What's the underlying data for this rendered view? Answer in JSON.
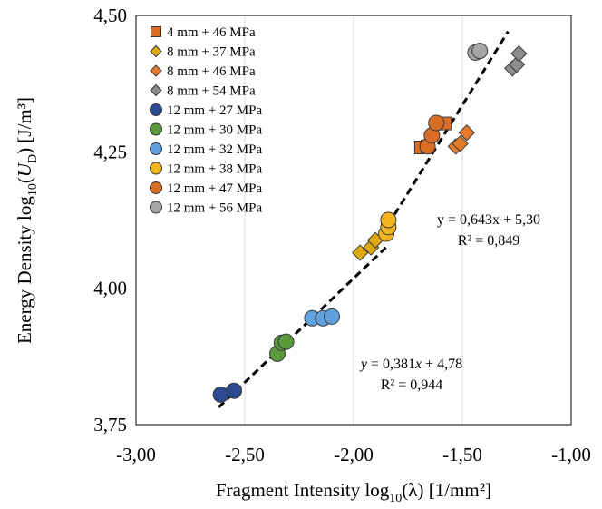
{
  "chart_data": {
    "type": "scatter",
    "xlabel": {
      "prefix": "Fragment Intensity log",
      "sub": "10",
      "suffix": "(λ) [1/mm²]"
    },
    "ylabel": {
      "prefix": "Energy Density log",
      "sub": "10",
      "mid": "(",
      "var": "U",
      "var_sub": "D",
      "suffix": ") [J/m³]"
    },
    "xlim": [
      -3.0,
      -1.0
    ],
    "ylim": [
      3.75,
      4.5
    ],
    "x_ticks": [
      -3.0,
      -2.5,
      -2.0,
      -1.5,
      -1.0
    ],
    "x_tick_labels": [
      "-3,00",
      "-2,50",
      "-2,00",
      "-1,50",
      "-1,00"
    ],
    "y_ticks": [
      3.75,
      4.0,
      4.25,
      4.5
    ],
    "y_tick_labels": [
      "3,75",
      "4,00",
      "4,25",
      "4,50"
    ],
    "grid": {
      "x": true,
      "y": false
    },
    "legend_position": "top-left",
    "series": [
      {
        "name": "4 mm + 46 MPa",
        "marker": "square",
        "color": "#D86E25",
        "points": [
          [
            -1.69,
            4.258
          ],
          [
            -1.66,
            4.26
          ],
          [
            -1.58,
            4.302
          ]
        ]
      },
      {
        "name": "8 mm + 37 MPa",
        "marker": "diamond",
        "color": "#DEA813",
        "points": [
          [
            -1.97,
            4.065
          ],
          [
            -1.92,
            4.075
          ],
          [
            -1.9,
            4.088
          ]
        ]
      },
      {
        "name": "8 mm + 46 MPa",
        "marker": "diamond",
        "color": "#E37B2A",
        "points": [
          [
            -1.53,
            4.26
          ],
          [
            -1.51,
            4.265
          ],
          [
            -1.48,
            4.285
          ]
        ]
      },
      {
        "name": "8 mm + 54 MPa",
        "marker": "diamond",
        "color": "#8C8C8C",
        "points": [
          [
            -1.27,
            4.403
          ],
          [
            -1.25,
            4.41
          ],
          [
            -1.24,
            4.43
          ]
        ]
      },
      {
        "name": "12 mm + 27 MPa",
        "marker": "circle",
        "color": "#2C4A91",
        "points": [
          [
            -2.61,
            3.805
          ],
          [
            -2.55,
            3.812
          ]
        ]
      },
      {
        "name": "12 mm + 30 MPa",
        "marker": "circle",
        "color": "#5B9A3C",
        "points": [
          [
            -2.35,
            3.88
          ],
          [
            -2.33,
            3.9
          ],
          [
            -2.31,
            3.902
          ]
        ]
      },
      {
        "name": "12 mm + 32 MPa",
        "marker": "circle",
        "color": "#5FA2DE",
        "points": [
          [
            -2.19,
            3.945
          ],
          [
            -2.14,
            3.945
          ],
          [
            -2.1,
            3.948
          ]
        ]
      },
      {
        "name": "12 mm + 38 MPa",
        "marker": "circle",
        "color": "#F2B51E",
        "points": [
          [
            -1.85,
            4.1
          ],
          [
            -1.84,
            4.112
          ],
          [
            -1.84,
            4.125
          ]
        ]
      },
      {
        "name": "12 mm + 47 MPa",
        "marker": "circle",
        "color": "#D86E25",
        "points": [
          [
            -1.66,
            4.26
          ],
          [
            -1.64,
            4.28
          ],
          [
            -1.62,
            4.303
          ]
        ]
      },
      {
        "name": "12 mm + 56 MPa",
        "marker": "circle",
        "color": "#A6A6A6",
        "points": [
          [
            -1.44,
            4.432
          ],
          [
            -1.42,
            4.435
          ]
        ]
      }
    ],
    "trendlines": [
      {
        "type": "linear",
        "slope": 0.381,
        "intercept": 4.78,
        "x_range": [
          -2.62,
          -1.84
        ]
      },
      {
        "type": "linear",
        "slope": 0.643,
        "intercept": 5.3,
        "x_range": [
          -1.84,
          -1.29
        ]
      }
    ],
    "annotations": [
      {
        "line1_prefix": "y = 0,643x + 5,30",
        "line2": "R² = 0,849",
        "italic": false
      },
      {
        "y": "y",
        "mid": " = 0,381",
        "x": "x",
        "tail": " + 4,78",
        "line2": "R² = 0,944",
        "italic": true
      }
    ]
  }
}
